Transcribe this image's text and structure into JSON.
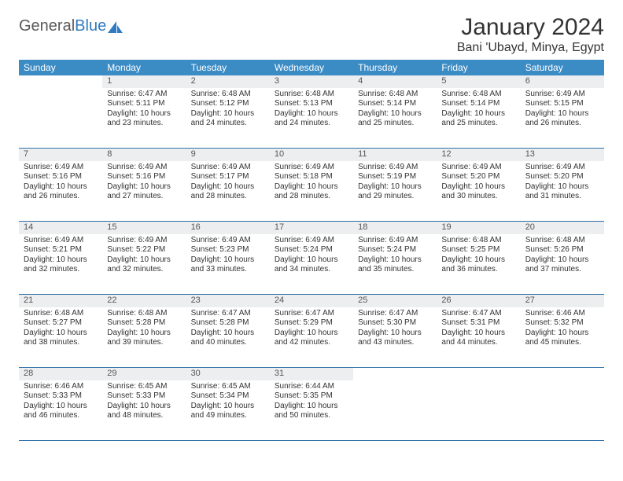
{
  "logo": {
    "text1": "General",
    "text2": "Blue"
  },
  "title": "January 2024",
  "location": "Bani 'Ubayd, Minya, Egypt",
  "colors": {
    "header_bg": "#3b8bc5",
    "header_text": "#ffffff",
    "daynum_bg": "#eceeef",
    "row_border": "#2f6fa5",
    "logo_gray": "#5a5a5a",
    "logo_blue": "#2f7ac0"
  },
  "weekdays": [
    "Sunday",
    "Monday",
    "Tuesday",
    "Wednesday",
    "Thursday",
    "Friday",
    "Saturday"
  ],
  "grid": [
    [
      null,
      {
        "n": "1",
        "sr": "Sunrise: 6:47 AM",
        "ss": "Sunset: 5:11 PM",
        "dl": "Daylight: 10 hours and 23 minutes."
      },
      {
        "n": "2",
        "sr": "Sunrise: 6:48 AM",
        "ss": "Sunset: 5:12 PM",
        "dl": "Daylight: 10 hours and 24 minutes."
      },
      {
        "n": "3",
        "sr": "Sunrise: 6:48 AM",
        "ss": "Sunset: 5:13 PM",
        "dl": "Daylight: 10 hours and 24 minutes."
      },
      {
        "n": "4",
        "sr": "Sunrise: 6:48 AM",
        "ss": "Sunset: 5:14 PM",
        "dl": "Daylight: 10 hours and 25 minutes."
      },
      {
        "n": "5",
        "sr": "Sunrise: 6:48 AM",
        "ss": "Sunset: 5:14 PM",
        "dl": "Daylight: 10 hours and 25 minutes."
      },
      {
        "n": "6",
        "sr": "Sunrise: 6:49 AM",
        "ss": "Sunset: 5:15 PM",
        "dl": "Daylight: 10 hours and 26 minutes."
      }
    ],
    [
      {
        "n": "7",
        "sr": "Sunrise: 6:49 AM",
        "ss": "Sunset: 5:16 PM",
        "dl": "Daylight: 10 hours and 26 minutes."
      },
      {
        "n": "8",
        "sr": "Sunrise: 6:49 AM",
        "ss": "Sunset: 5:16 PM",
        "dl": "Daylight: 10 hours and 27 minutes."
      },
      {
        "n": "9",
        "sr": "Sunrise: 6:49 AM",
        "ss": "Sunset: 5:17 PM",
        "dl": "Daylight: 10 hours and 28 minutes."
      },
      {
        "n": "10",
        "sr": "Sunrise: 6:49 AM",
        "ss": "Sunset: 5:18 PM",
        "dl": "Daylight: 10 hours and 28 minutes."
      },
      {
        "n": "11",
        "sr": "Sunrise: 6:49 AM",
        "ss": "Sunset: 5:19 PM",
        "dl": "Daylight: 10 hours and 29 minutes."
      },
      {
        "n": "12",
        "sr": "Sunrise: 6:49 AM",
        "ss": "Sunset: 5:20 PM",
        "dl": "Daylight: 10 hours and 30 minutes."
      },
      {
        "n": "13",
        "sr": "Sunrise: 6:49 AM",
        "ss": "Sunset: 5:20 PM",
        "dl": "Daylight: 10 hours and 31 minutes."
      }
    ],
    [
      {
        "n": "14",
        "sr": "Sunrise: 6:49 AM",
        "ss": "Sunset: 5:21 PM",
        "dl": "Daylight: 10 hours and 32 minutes."
      },
      {
        "n": "15",
        "sr": "Sunrise: 6:49 AM",
        "ss": "Sunset: 5:22 PM",
        "dl": "Daylight: 10 hours and 32 minutes."
      },
      {
        "n": "16",
        "sr": "Sunrise: 6:49 AM",
        "ss": "Sunset: 5:23 PM",
        "dl": "Daylight: 10 hours and 33 minutes."
      },
      {
        "n": "17",
        "sr": "Sunrise: 6:49 AM",
        "ss": "Sunset: 5:24 PM",
        "dl": "Daylight: 10 hours and 34 minutes."
      },
      {
        "n": "18",
        "sr": "Sunrise: 6:49 AM",
        "ss": "Sunset: 5:24 PM",
        "dl": "Daylight: 10 hours and 35 minutes."
      },
      {
        "n": "19",
        "sr": "Sunrise: 6:48 AM",
        "ss": "Sunset: 5:25 PM",
        "dl": "Daylight: 10 hours and 36 minutes."
      },
      {
        "n": "20",
        "sr": "Sunrise: 6:48 AM",
        "ss": "Sunset: 5:26 PM",
        "dl": "Daylight: 10 hours and 37 minutes."
      }
    ],
    [
      {
        "n": "21",
        "sr": "Sunrise: 6:48 AM",
        "ss": "Sunset: 5:27 PM",
        "dl": "Daylight: 10 hours and 38 minutes."
      },
      {
        "n": "22",
        "sr": "Sunrise: 6:48 AM",
        "ss": "Sunset: 5:28 PM",
        "dl": "Daylight: 10 hours and 39 minutes."
      },
      {
        "n": "23",
        "sr": "Sunrise: 6:47 AM",
        "ss": "Sunset: 5:28 PM",
        "dl": "Daylight: 10 hours and 40 minutes."
      },
      {
        "n": "24",
        "sr": "Sunrise: 6:47 AM",
        "ss": "Sunset: 5:29 PM",
        "dl": "Daylight: 10 hours and 42 minutes."
      },
      {
        "n": "25",
        "sr": "Sunrise: 6:47 AM",
        "ss": "Sunset: 5:30 PM",
        "dl": "Daylight: 10 hours and 43 minutes."
      },
      {
        "n": "26",
        "sr": "Sunrise: 6:47 AM",
        "ss": "Sunset: 5:31 PM",
        "dl": "Daylight: 10 hours and 44 minutes."
      },
      {
        "n": "27",
        "sr": "Sunrise: 6:46 AM",
        "ss": "Sunset: 5:32 PM",
        "dl": "Daylight: 10 hours and 45 minutes."
      }
    ],
    [
      {
        "n": "28",
        "sr": "Sunrise: 6:46 AM",
        "ss": "Sunset: 5:33 PM",
        "dl": "Daylight: 10 hours and 46 minutes."
      },
      {
        "n": "29",
        "sr": "Sunrise: 6:45 AM",
        "ss": "Sunset: 5:33 PM",
        "dl": "Daylight: 10 hours and 48 minutes."
      },
      {
        "n": "30",
        "sr": "Sunrise: 6:45 AM",
        "ss": "Sunset: 5:34 PM",
        "dl": "Daylight: 10 hours and 49 minutes."
      },
      {
        "n": "31",
        "sr": "Sunrise: 6:44 AM",
        "ss": "Sunset: 5:35 PM",
        "dl": "Daylight: 10 hours and 50 minutes."
      },
      null,
      null,
      null
    ]
  ]
}
